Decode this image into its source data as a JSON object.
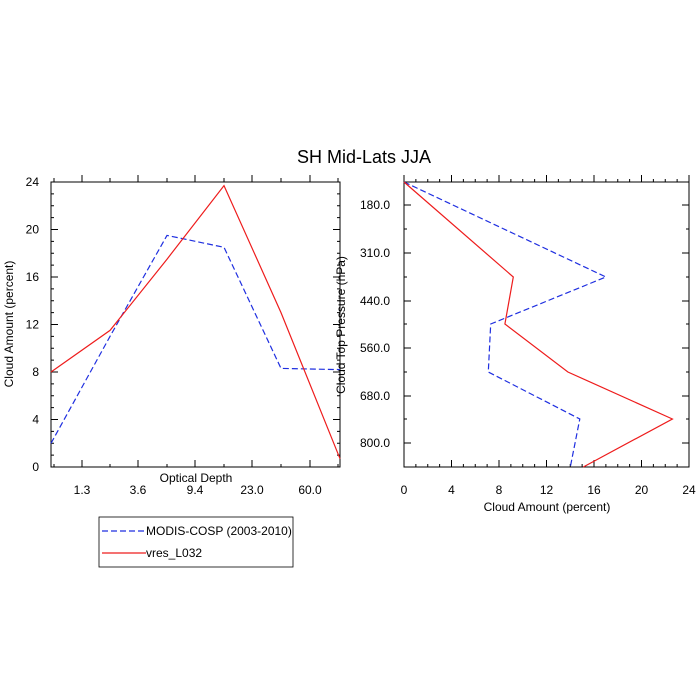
{
  "title": "SH Mid-Lats JJA",
  "colors": {
    "modis": "#1f2fe0",
    "model": "#ee1c1c"
  },
  "legend": {
    "placement": "below-left",
    "items": [
      {
        "label": "MODIS-COSP (2003-2010)",
        "style": "dashed",
        "color": "#1f2fe0"
      },
      {
        "label": "vres_L032",
        "style": "solid",
        "color": "#ee1c1c"
      }
    ]
  },
  "chart_data": [
    {
      "type": "line",
      "xlabel": "Optical Depth",
      "ylabel": "Cloud Amount (percent)",
      "xticks": [
        "1.3",
        "3.6",
        "9.4",
        "23.0",
        "60.0"
      ],
      "ylim": [
        0,
        24
      ],
      "yticks": [
        "0",
        "4",
        "8",
        "12",
        "16",
        "20",
        "24"
      ],
      "series": [
        {
          "name": "MODIS-COSP (2003-2010)",
          "values": [
            2.0,
            11.0,
            19.5,
            18.5,
            8.3,
            8.2
          ]
        },
        {
          "name": "vres_L032",
          "values": [
            8.0,
            11.5,
            17.5,
            23.7,
            13.0,
            0.7
          ]
        }
      ]
    },
    {
      "type": "line",
      "xlabel": "Cloud Amount (percent)",
      "ylabel": "Cloud Top Pressure (hPa)",
      "xlim": [
        0,
        24
      ],
      "xticks": [
        "0",
        "4",
        "8",
        "12",
        "16",
        "20",
        "24"
      ],
      "yticks": [
        "180.0",
        "310.0",
        "440.0",
        "560.0",
        "680.0",
        "800.0"
      ],
      "series": [
        {
          "name": "MODIS-COSP (2003-2010)",
          "values": [
            0.0,
            17.0,
            7.3,
            7.1,
            14.8,
            14.0
          ]
        },
        {
          "name": "vres_L032",
          "values": [
            0.0,
            9.2,
            8.5,
            13.8,
            22.6,
            15.1
          ]
        }
      ]
    }
  ]
}
